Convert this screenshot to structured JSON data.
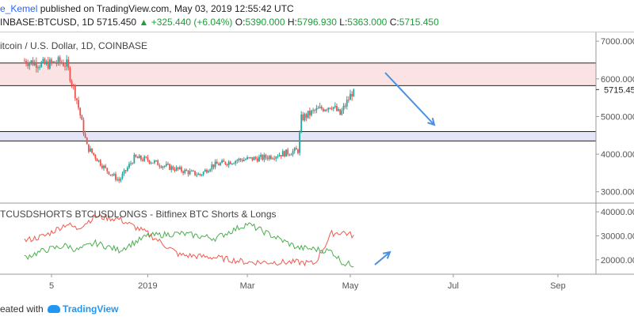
{
  "header": {
    "user": "e_Kemel",
    "published": "published on TradingView.com, May 03, 2019 12:55:42 UTC",
    "symbol": "INBASE:BTCUSD, 1D",
    "last": "5715.450",
    "change": "+325.440 (+6.04%)",
    "o_label": "O:",
    "o_value": "5390.000",
    "h_label": "H:",
    "h_value": "5796.930",
    "l_label": "L:",
    "l_value": "5363.000",
    "c_label": "C:",
    "c_value": "5715.450"
  },
  "footer": {
    "created_with": "eated with",
    "brand": "TradingView"
  },
  "chart_data": [
    {
      "type": "candlestick",
      "title": "itcoin / U.S. Dollar, 1D, COINBASE",
      "ylim": [
        2700,
        7150
      ],
      "y_ticks": [
        "7000.000",
        "6000.000",
        "5000.000",
        "4000.000",
        "3000.000"
      ],
      "last_price_label": "5715.450",
      "zones": [
        {
          "name": "resistance",
          "from": 5820,
          "to": 6420,
          "color": "#fbe3e3"
        },
        {
          "name": "support",
          "from": 4350,
          "to": 4600,
          "color": "#e4e6f7"
        }
      ],
      "x": [
        "2018-10-20",
        "2018-11-01",
        "2018-11-10",
        "2018-11-14",
        "2018-11-20",
        "2018-11-26",
        "2018-12-07",
        "2018-12-15",
        "2018-12-24",
        "2019-01-01",
        "2019-01-10",
        "2019-01-20",
        "2019-02-01",
        "2019-02-08",
        "2019-02-24",
        "2019-03-10",
        "2019-03-31",
        "2019-04-02",
        "2019-04-10",
        "2019-04-20",
        "2019-04-25",
        "2019-05-03"
      ],
      "close": [
        6480,
        6380,
        6450,
        6380,
        5450,
        4200,
        3600,
        3300,
        3900,
        3850,
        3700,
        3580,
        3450,
        3700,
        3850,
        3900,
        4100,
        4950,
        5150,
        5300,
        5050,
        5715
      ]
    },
    {
      "type": "line",
      "title": "TCUSDSHORTS BTCUSDLONGS - Bitfinex BTC Shorts & Longs",
      "ylim": [
        14000,
        42000
      ],
      "y_ticks": [
        "40000.000",
        "30000.000",
        "20000.000"
      ],
      "series": [
        {
          "color": "#f05a4f",
          "x": [
            "2018-10-20",
            "2018-11-01",
            "2018-11-14",
            "2018-11-20",
            "2018-12-01",
            "2018-12-15",
            "2019-01-01",
            "2019-01-20",
            "2019-02-10",
            "2019-03-01",
            "2019-03-31",
            "2019-04-10",
            "2019-04-20",
            "2019-04-27",
            "2019-05-03"
          ],
          "values": [
            28000,
            30000,
            35000,
            33000,
            38000,
            37000,
            31000,
            22000,
            21000,
            19000,
            19000,
            18500,
            31000,
            31500,
            30000
          ]
        },
        {
          "color": "#4caf50",
          "x": [
            "2018-10-20",
            "2018-11-01",
            "2018-11-14",
            "2018-11-20",
            "2018-12-01",
            "2018-12-15",
            "2019-01-01",
            "2019-01-20",
            "2019-02-10",
            "2019-03-01",
            "2019-03-31",
            "2019-04-10",
            "2019-04-20",
            "2019-04-27",
            "2019-05-03"
          ],
          "values": [
            21000,
            24000,
            26000,
            24000,
            27000,
            24000,
            30000,
            31000,
            29000,
            35000,
            25000,
            24500,
            23500,
            18500,
            18000
          ]
        }
      ]
    }
  ],
  "x_axis": {
    "ticks": [
      {
        "label": "5",
        "date": "2018-11-05"
      },
      {
        "label": "2019",
        "date": "2019-01-01"
      },
      {
        "label": "Mar",
        "date": "2019-03-01"
      },
      {
        "label": "May",
        "date": "2019-05-01"
      },
      {
        "label": "Jul",
        "date": "2019-07-01"
      },
      {
        "label": "Sep",
        "date": "2019-09-01"
      }
    ]
  },
  "colors": {
    "up": "#26a69a",
    "down": "#ef5350",
    "arrow": "#4a90e2",
    "axis": "#888888"
  }
}
